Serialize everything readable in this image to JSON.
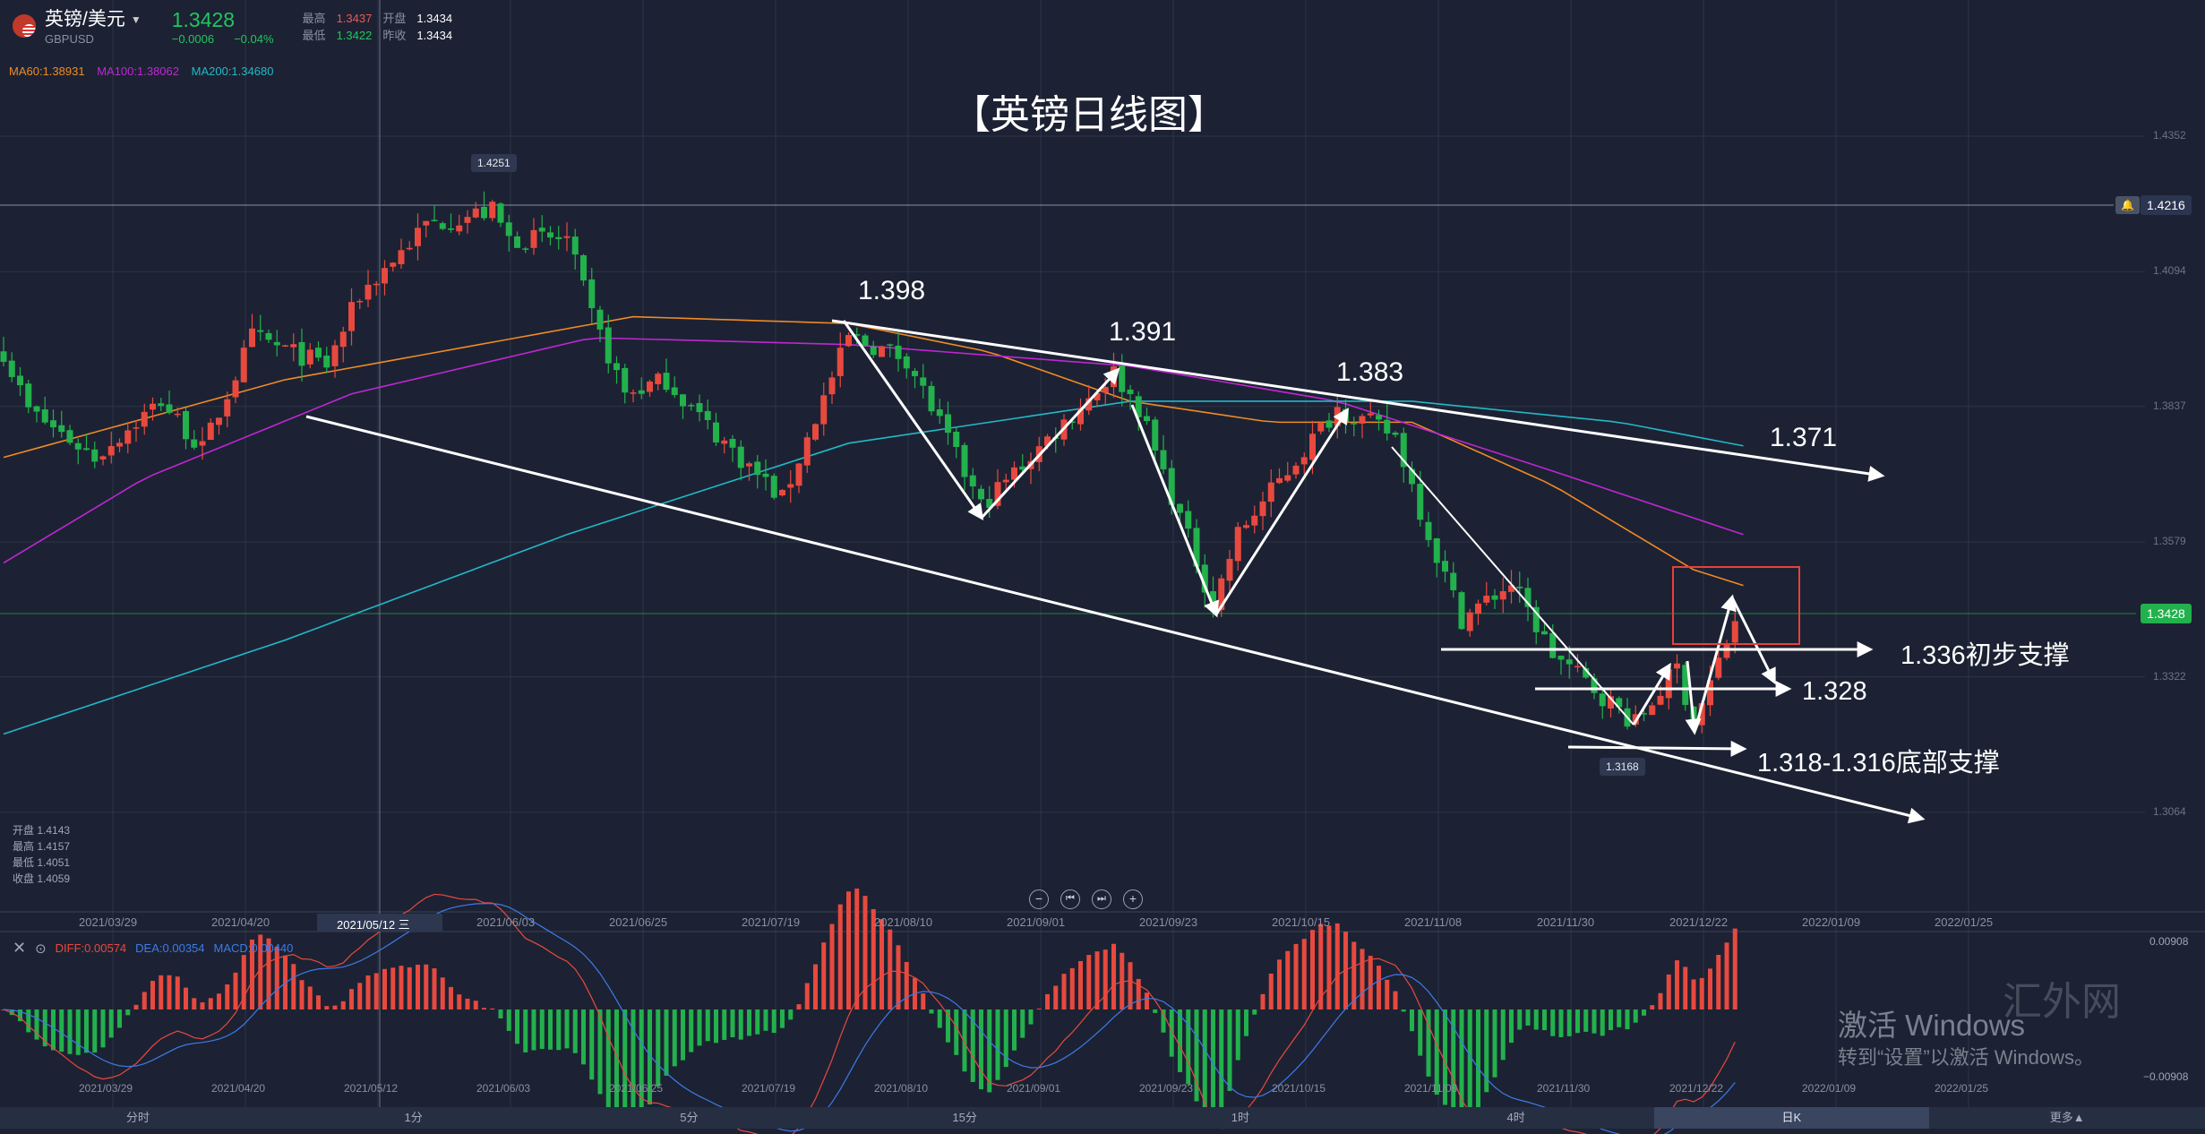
{
  "header": {
    "name": "英镑/美元",
    "symbol": "GBPUSD",
    "price": "1.3428",
    "change": "−0.0006",
    "change_pct": "−0.04%",
    "high_label": "最高",
    "high": "1.3437",
    "open_label": "开盘",
    "open": "1.3434",
    "low_label": "最低",
    "low": "1.3422",
    "prev_close_label": "昨收",
    "prev_close": "1.3434"
  },
  "ma_legend": {
    "ma60": "MA60:1.38931",
    "ma100": "MA100:1.38062",
    "ma200": "MA200:1.34680"
  },
  "crosshair_ohlc": {
    "open": "开盘 1.4143",
    "high": "最高 1.4157",
    "low": "最低 1.4051",
    "close": "收盘 1.4059",
    "date": "2021/05/12 三"
  },
  "price_axis": [
    "1.4352",
    "1.4094",
    "1.3837",
    "1.3579",
    "1.3322",
    "1.3064"
  ],
  "price_tags": {
    "alert_line": "1.4216",
    "current": "1.3428",
    "peak": "1.4251",
    "trough": "1.3168"
  },
  "date_axis": [
    "2021/03/29",
    "2021/04/20",
    "2021/05/12",
    "2021/06/03",
    "2021/06/25",
    "2021/07/19",
    "2021/08/10",
    "2021/09/01",
    "2021/09/23",
    "2021/10/15",
    "2021/11/08",
    "2021/11/30",
    "2021/12/22",
    "2022/01/09",
    "2022/01/25"
  ],
  "annotations": {
    "title": "【英镑日线图】",
    "h1": "1.398",
    "h2": "1.391",
    "h3": "1.383",
    "trend_target": "1.371",
    "support1": "1.336初步支撑",
    "support2": "1.328",
    "support3": "1.318-1.316底部支撑"
  },
  "macd": {
    "diff": "DIFF:0.00574",
    "dea": "DEA:0.00354",
    "macd": "MACD:0.00440",
    "axis_top": "0.00908",
    "axis_bottom": "−0.00908"
  },
  "zoom_controls": {
    "zoom_out": "−",
    "prev": "⏮",
    "next": "⏭",
    "zoom_in": "+"
  },
  "period_tabs": [
    "分时",
    "1分",
    "5分",
    "15分",
    "1时",
    "4时",
    "日K",
    "更多▲"
  ],
  "active_tab": "日K",
  "watermark": {
    "activate_title": "激活 Windows",
    "activate_sub": "转到“设置”以激活 Windows。",
    "site": "汇外网"
  },
  "colors": {
    "up": "#e8493f",
    "down": "#22b14c",
    "ma60": "#f08a24",
    "ma100": "#c026d3",
    "ma200": "#22b8c8",
    "bg": "#1c2233"
  },
  "chart_data": {
    "type": "candlestick",
    "title": "【英镑日线图】",
    "ylim": [
      1.3064,
      1.4352
    ],
    "bars": 210,
    "close_path": [
      [
        0,
        1.3942
      ],
      [
        3,
        1.383
      ],
      [
        11,
        1.3741
      ],
      [
        19,
        1.3848
      ],
      [
        24,
        1.3754
      ],
      [
        30,
        1.3969
      ],
      [
        39,
        1.3915
      ],
      [
        43,
        1.405
      ],
      [
        51,
        1.4183
      ],
      [
        59,
        1.421
      ],
      [
        61,
        1.4156
      ],
      [
        68,
        1.4156
      ],
      [
        71,
        1.4009
      ],
      [
        75,
        1.3861
      ],
      [
        80,
        1.3888
      ],
      [
        85,
        1.38
      ],
      [
        94,
        1.366
      ],
      [
        102,
        1.3969
      ],
      [
        109,
        1.3929
      ],
      [
        118,
        1.3647
      ],
      [
        134,
        1.3902
      ],
      [
        137,
        1.3835
      ],
      [
        146,
        1.346
      ],
      [
        149,
        1.3594
      ],
      [
        161,
        1.3835
      ],
      [
        168,
        1.3781
      ],
      [
        172,
        1.3594
      ],
      [
        176,
        1.3433
      ],
      [
        182,
        1.35
      ],
      [
        187,
        1.3366
      ],
      [
        197,
        1.3232
      ],
      [
        202,
        1.334
      ],
      [
        204,
        1.3232
      ],
      [
        209,
        1.3428
      ]
    ],
    "ma60": [
      [
        0,
        1.374
      ],
      [
        34,
        1.3888
      ],
      [
        76,
        1.4008
      ],
      [
        102,
        1.3995
      ],
      [
        119,
        1.3941
      ],
      [
        136,
        1.3847
      ],
      [
        153,
        1.3807
      ],
      [
        170,
        1.3807
      ],
      [
        187,
        1.3687
      ],
      [
        204,
        1.3526
      ],
      [
        211,
        1.3491
      ]
    ],
    "ma100": [
      [
        0,
        1.3539
      ],
      [
        17,
        1.37
      ],
      [
        42,
        1.3861
      ],
      [
        71,
        1.3968
      ],
      [
        102,
        1.3955
      ],
      [
        136,
        1.3914
      ],
      [
        161,
        1.3847
      ],
      [
        187,
        1.3714
      ],
      [
        210,
        1.3593
      ]
    ],
    "ma200": [
      [
        0,
        1.3213
      ],
      [
        34,
        1.3392
      ],
      [
        68,
        1.3593
      ],
      [
        102,
        1.3767
      ],
      [
        136,
        1.3847
      ],
      [
        170,
        1.3847
      ],
      [
        195,
        1.3807
      ],
      [
        211,
        1.3759
      ]
    ]
  }
}
